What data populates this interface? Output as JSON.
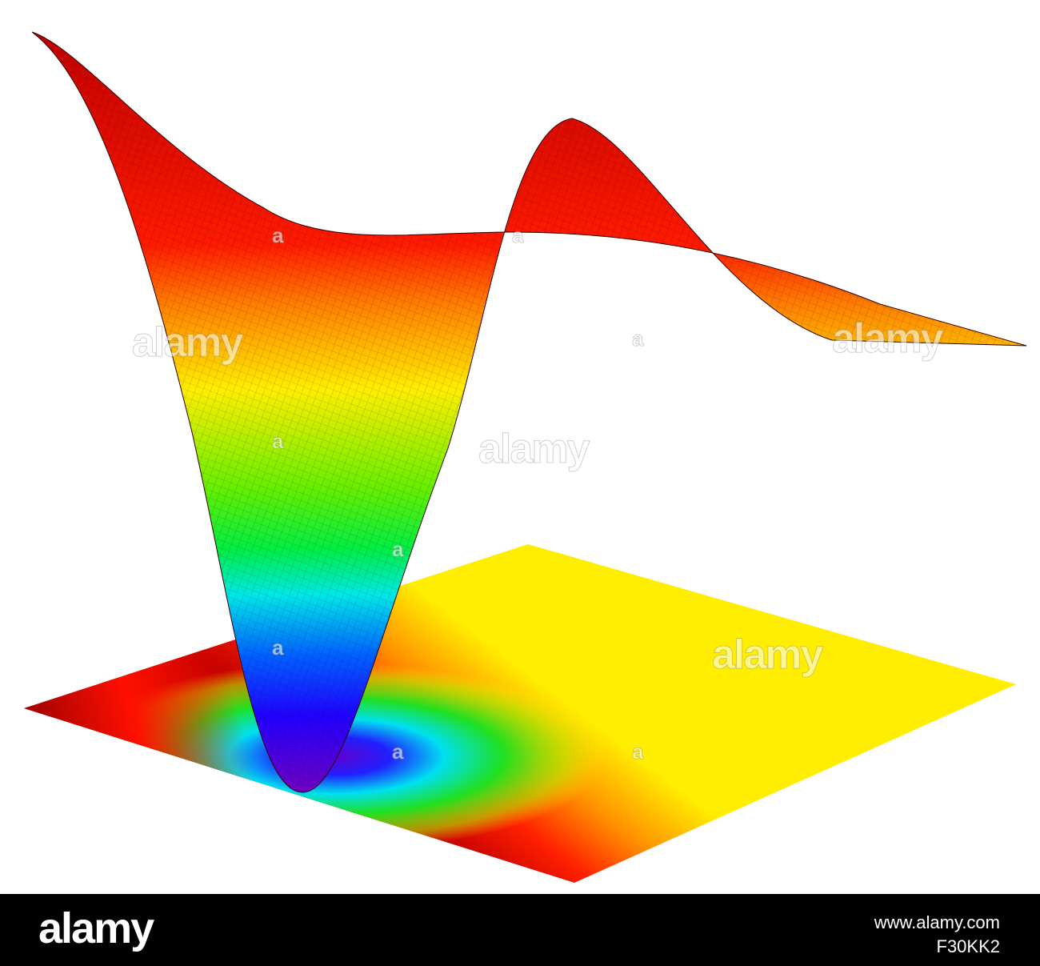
{
  "watermarks": {
    "labels": [
      "alamy",
      "alamy",
      "alamy",
      "alamy"
    ],
    "small_marks": [
      "a",
      "a",
      "a",
      "a",
      "a",
      "a",
      "a",
      "a"
    ]
  },
  "footer": {
    "logo": "alamy",
    "url": "www.alamy.com",
    "id": "F30KK2"
  }
}
